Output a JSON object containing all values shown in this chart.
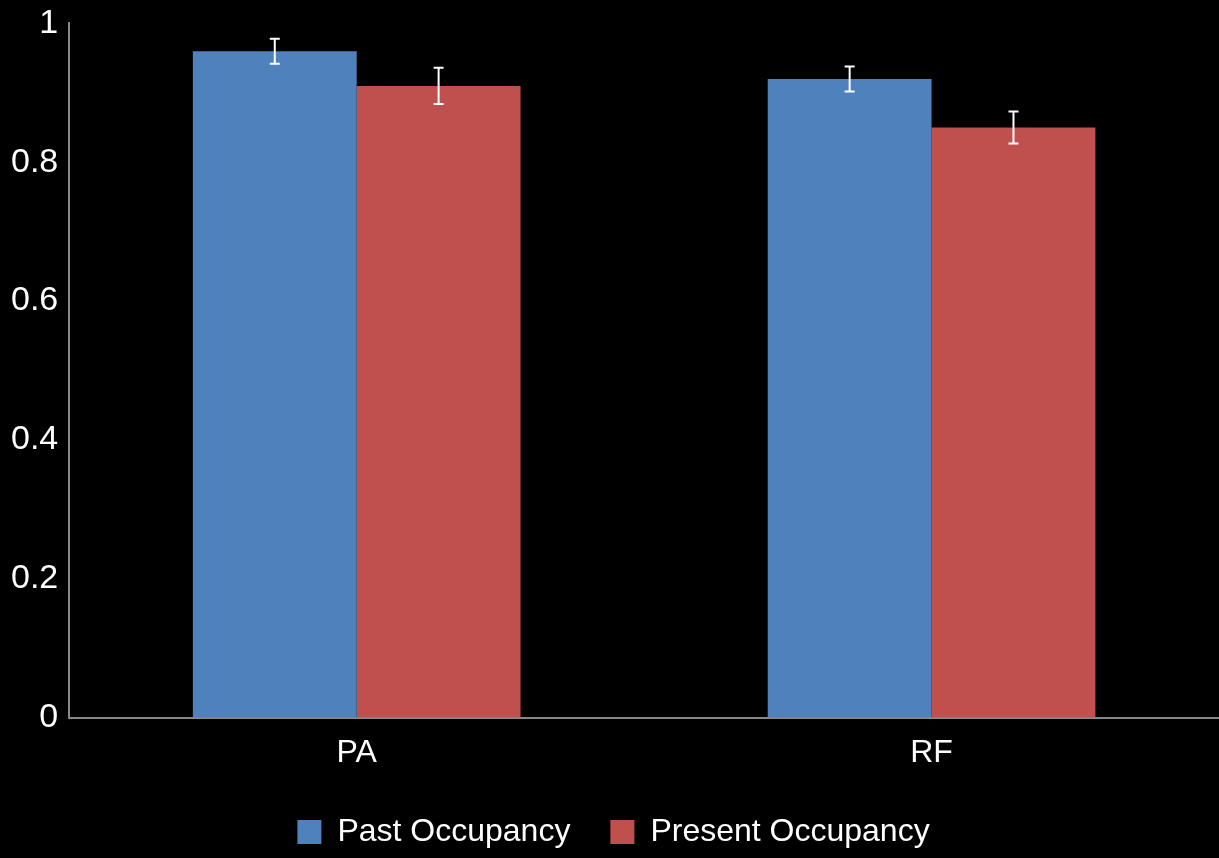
{
  "chart_data": {
    "type": "bar",
    "categories": [
      "PA",
      "RF"
    ],
    "series": [
      {
        "name": "Past Occupancy",
        "color": "#4f81bd",
        "values": [
          0.96,
          0.92
        ],
        "errors": [
          0.018,
          0.018
        ]
      },
      {
        "name": "Present Occupancy",
        "color": "#c0504d",
        "values": [
          0.91,
          0.85
        ],
        "errors": [
          0.026,
          0.023
        ]
      }
    ],
    "ylim": [
      0,
      1
    ],
    "yticks": [
      0,
      0.2,
      0.4,
      0.6,
      0.8,
      1
    ],
    "grid": false,
    "legend": "bottom"
  }
}
